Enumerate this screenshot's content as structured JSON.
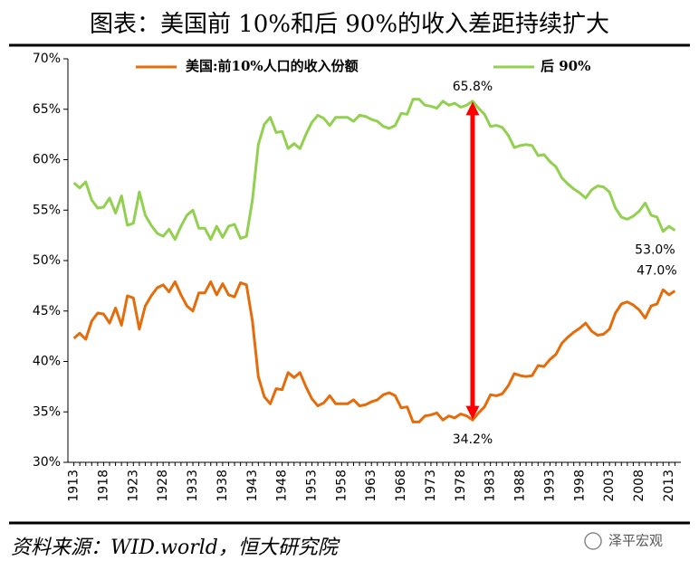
{
  "chart_data": {
    "type": "line",
    "title": "图表：美国前 10%和后 90%的收入差距持续扩大",
    "x": [
      1913,
      1914,
      1915,
      1916,
      1917,
      1918,
      1919,
      1920,
      1921,
      1922,
      1923,
      1924,
      1925,
      1926,
      1927,
      1928,
      1929,
      1930,
      1931,
      1932,
      1933,
      1934,
      1935,
      1936,
      1937,
      1938,
      1939,
      1940,
      1941,
      1942,
      1943,
      1944,
      1945,
      1946,
      1947,
      1948,
      1949,
      1950,
      1951,
      1952,
      1953,
      1954,
      1955,
      1956,
      1957,
      1958,
      1959,
      1960,
      1961,
      1962,
      1963,
      1964,
      1965,
      1966,
      1967,
      1968,
      1969,
      1970,
      1971,
      1972,
      1973,
      1974,
      1975,
      1976,
      1977,
      1978,
      1979,
      1980,
      1981,
      1982,
      1983,
      1984,
      1985,
      1986,
      1987,
      1988,
      1989,
      1990,
      1991,
      1992,
      1993,
      1994,
      1995,
      1996,
      1997,
      1998,
      1999,
      2000,
      2001,
      2002,
      2003,
      2004,
      2005,
      2006,
      2007,
      2008,
      2009,
      2010,
      2011,
      2012,
      2013,
      2014
    ],
    "series": [
      {
        "name": "美国:前10%人口的收入份额",
        "color": "#e46c0a",
        "values": [
          42.3,
          42.8,
          42.2,
          44.0,
          44.8,
          44.7,
          43.8,
          45.3,
          43.6,
          46.5,
          46.3,
          43.2,
          45.5,
          46.5,
          47.3,
          47.6,
          46.9,
          47.9,
          46.6,
          45.5,
          45.0,
          46.8,
          46.8,
          47.9,
          46.6,
          47.7,
          46.6,
          46.4,
          47.8,
          47.6,
          44.0,
          38.5,
          36.5,
          35.8,
          37.3,
          37.2,
          38.9,
          38.4,
          38.9,
          37.5,
          36.3,
          35.6,
          35.9,
          36.6,
          35.8,
          35.8,
          35.8,
          36.2,
          35.6,
          35.7,
          36.0,
          36.2,
          36.7,
          36.9,
          36.6,
          35.4,
          35.5,
          34.0,
          34.0,
          34.6,
          34.7,
          34.9,
          34.2,
          34.6,
          34.4,
          34.8,
          34.6,
          34.2,
          34.9,
          35.5,
          36.7,
          36.6,
          36.8,
          37.6,
          38.8,
          38.6,
          38.5,
          38.6,
          39.6,
          39.5,
          40.2,
          40.7,
          41.8,
          42.4,
          42.9,
          43.3,
          43.8,
          43.0,
          42.6,
          42.7,
          43.2,
          44.8,
          45.7,
          45.9,
          45.6,
          45.1,
          44.3,
          45.5,
          45.7,
          47.1,
          46.6,
          47.0
        ]
      },
      {
        "name": "后 90%",
        "color": "#92d050",
        "values": [
          57.7,
          57.2,
          57.8,
          56.0,
          55.2,
          55.3,
          56.2,
          54.7,
          56.4,
          53.5,
          53.7,
          56.8,
          54.5,
          53.5,
          52.7,
          52.4,
          53.1,
          52.1,
          53.4,
          54.5,
          55.0,
          53.2,
          53.2,
          52.1,
          53.4,
          52.3,
          53.4,
          53.6,
          52.2,
          52.4,
          56.0,
          61.5,
          63.5,
          64.2,
          62.7,
          62.8,
          61.1,
          61.6,
          61.1,
          62.5,
          63.7,
          64.4,
          64.1,
          63.4,
          64.2,
          64.2,
          64.2,
          63.8,
          64.4,
          64.3,
          64.0,
          63.8,
          63.3,
          63.1,
          63.4,
          64.6,
          64.5,
          66.0,
          66.0,
          65.4,
          65.3,
          65.1,
          65.8,
          65.4,
          65.6,
          65.2,
          65.4,
          65.8,
          65.1,
          64.5,
          63.3,
          63.4,
          63.2,
          62.4,
          61.2,
          61.4,
          61.5,
          61.4,
          60.4,
          60.5,
          59.8,
          59.3,
          58.2,
          57.6,
          57.1,
          56.7,
          56.2,
          57.0,
          57.4,
          57.3,
          56.8,
          55.2,
          54.3,
          54.1,
          54.4,
          54.9,
          55.7,
          54.5,
          54.3,
          52.9,
          53.4,
          53.0
        ]
      }
    ],
    "xlim": [
      1912,
      2015
    ],
    "xticks": [
      1913,
      1918,
      1923,
      1928,
      1933,
      1938,
      1943,
      1948,
      1953,
      1958,
      1963,
      1968,
      1973,
      1978,
      1983,
      1988,
      1993,
      1998,
      2003,
      2008,
      2013
    ],
    "ylim": [
      30,
      70
    ],
    "yticks": [
      {
        "value": 30,
        "label": "30%"
      },
      {
        "value": 35,
        "label": "35%"
      },
      {
        "value": 40,
        "label": "40%"
      },
      {
        "value": 45,
        "label": "45%"
      },
      {
        "value": 50,
        "label": "50%"
      },
      {
        "value": 55,
        "label": "55%"
      },
      {
        "value": 60,
        "label": "60%"
      },
      {
        "value": 65,
        "label": "65%"
      },
      {
        "value": 70,
        "label": "70%"
      }
    ],
    "annotations": [
      {
        "text": "65.8%",
        "x": 1980,
        "value": 65.8
      },
      {
        "text": "34.2%",
        "x": 1980,
        "value": 34.2
      },
      {
        "text": "53.0%",
        "x": 2014,
        "value": 53.0
      },
      {
        "text": "47.0%",
        "x": 2014,
        "value": 47.0
      }
    ],
    "arrow_color": "#ff0000",
    "legend": "top"
  },
  "source": "资料来源：WID.world，恒大研究院",
  "watermark": "泽平宏观"
}
